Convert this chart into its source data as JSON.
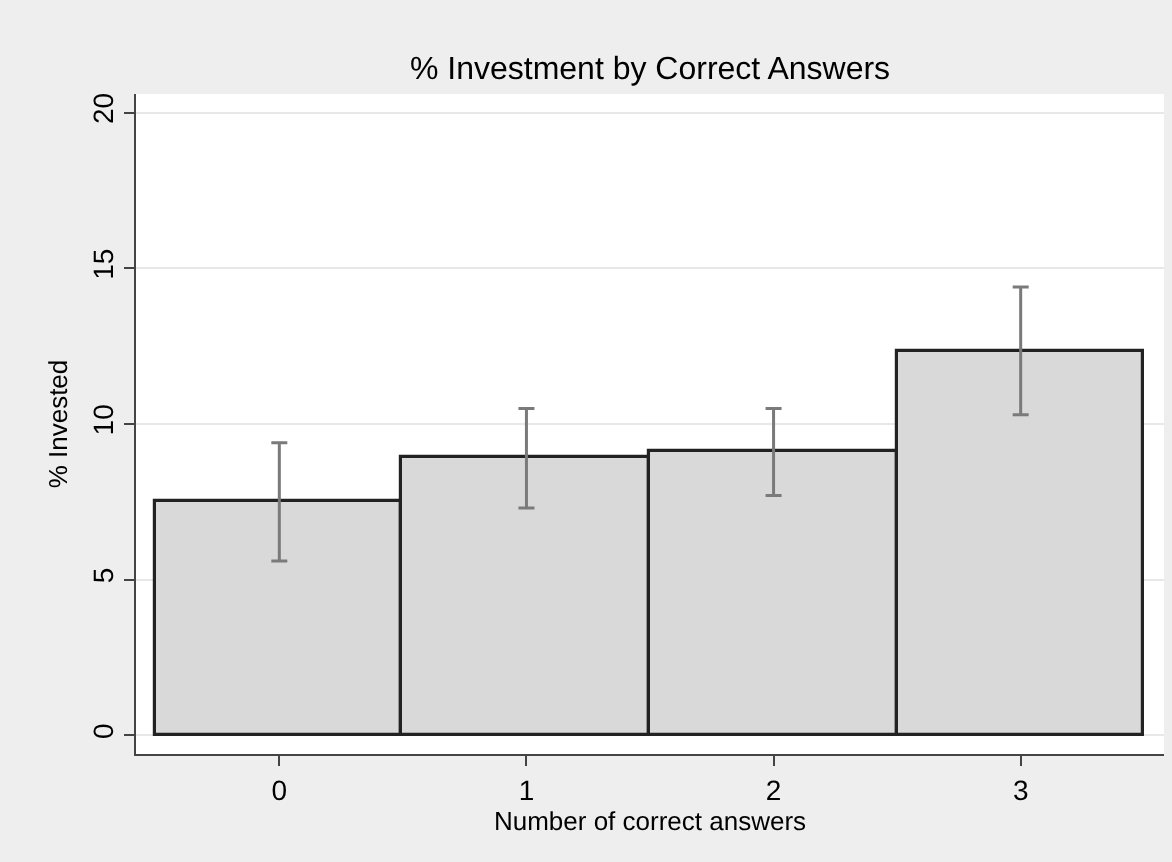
{
  "chart_data": {
    "type": "bar",
    "title": "% Investment by Correct Answers",
    "xlabel": "Number of correct answers",
    "ylabel": "% Invested",
    "x": [
      0,
      1,
      2,
      3
    ],
    "values": [
      7.5,
      8.9,
      9.1,
      12.3
    ],
    "color": "#d9d9d9",
    "errors": [
      [
        5.6,
        9.4
      ],
      [
        7.3,
        10.5
      ],
      [
        7.7,
        10.5
      ],
      [
        10.3,
        14.4
      ]
    ],
    "xlim": [
      -0.58,
      3.58
    ],
    "xticks": [
      0,
      1,
      2,
      3
    ],
    "ylim": [
      -0.6,
      20.6
    ],
    "yticks": [
      0,
      5,
      10,
      15,
      20
    ],
    "grid": "y"
  }
}
